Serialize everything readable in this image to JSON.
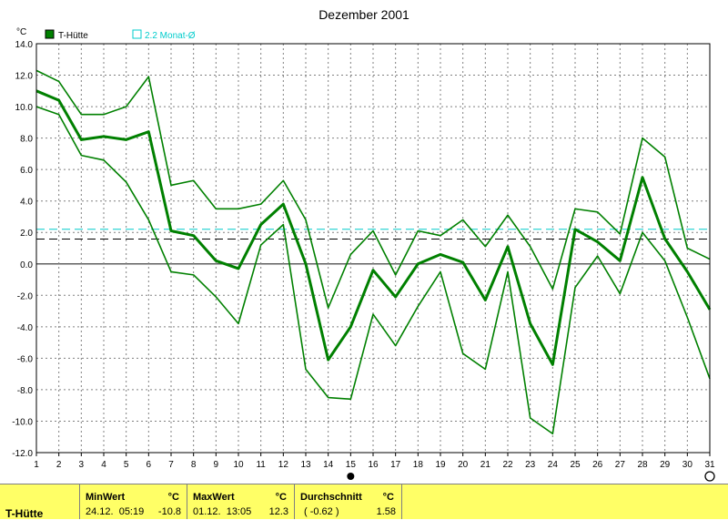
{
  "chart_data": {
    "type": "line",
    "title": "Dezember 2001",
    "ylabel": "°C",
    "ylim": [
      -12,
      14
    ],
    "yticks": [
      "14.0",
      "12.0",
      "10.0",
      "8.0",
      "6.0",
      "4.0",
      "2.0",
      "0.0",
      "-2.0",
      "-4.0",
      "-6.0",
      "-8.0",
      "-10.0",
      "-12.0"
    ],
    "x": [
      1,
      2,
      3,
      4,
      5,
      6,
      7,
      8,
      9,
      10,
      11,
      12,
      13,
      14,
      15,
      16,
      17,
      18,
      19,
      20,
      21,
      22,
      23,
      24,
      25,
      26,
      27,
      28,
      29,
      30,
      31
    ],
    "series": [
      {
        "name": "T-Hütte",
        "role": "mean",
        "color": "#008000",
        "values": [
          11.0,
          10.4,
          7.9,
          8.1,
          7.9,
          8.4,
          2.1,
          1.8,
          0.2,
          -0.3,
          2.5,
          3.8,
          0.0,
          -6.1,
          -4.0,
          -0.4,
          -2.1,
          0.0,
          0.6,
          0.1,
          -2.3,
          1.1,
          -3.8,
          -6.4,
          2.2,
          1.4,
          0.2,
          5.5,
          1.6,
          -0.5,
          -2.9
        ]
      },
      {
        "role": "max",
        "color": "#008000",
        "values": [
          12.3,
          11.6,
          9.5,
          9.5,
          10.0,
          11.9,
          5.0,
          5.3,
          3.5,
          3.5,
          3.8,
          5.3,
          2.8,
          -2.8,
          0.6,
          2.1,
          -0.7,
          2.1,
          1.8,
          2.8,
          1.1,
          3.1,
          1.1,
          -1.6,
          3.5,
          3.3,
          1.9,
          8.0,
          6.8,
          1.0,
          0.3
        ]
      },
      {
        "role": "min",
        "color": "#008000",
        "values": [
          10.0,
          9.5,
          6.9,
          6.6,
          5.2,
          2.8,
          -0.5,
          -0.7,
          -2.1,
          -3.8,
          1.2,
          2.5,
          -6.7,
          -8.5,
          -8.6,
          -3.2,
          -5.2,
          -2.7,
          -0.5,
          -5.7,
          -6.7,
          -0.5,
          -9.8,
          -10.8,
          -1.5,
          0.5,
          -1.9,
          2.0,
          0.2,
          -3.4,
          -7.3
        ]
      }
    ],
    "reference_lines": [
      {
        "name": "2.2 Monat-Ø",
        "value": 2.2,
        "color": "#00cccc",
        "style": "dashed"
      },
      {
        "value": 1.58,
        "color": "#000000",
        "style": "dashed"
      }
    ],
    "grid": true,
    "legend": "top-left",
    "markers": {
      "filled_day": 15,
      "open_day": 31
    }
  },
  "colors": {
    "panel": "#ffff66",
    "series": "#008000",
    "reference": "#00cccc"
  },
  "stats": {
    "label": "T-Hütte",
    "min": {
      "header": "MinWert",
      "unit": "°C",
      "datetime": "24.12.  05:19",
      "value": "-10.8"
    },
    "max": {
      "header": "MaxWert",
      "unit": "°C",
      "datetime": "01.12.  13:05",
      "value": "12.3"
    },
    "avg": {
      "header": "Durchschnitt",
      "unit": "°C",
      "note": "( -0.62 )",
      "value": "1.58"
    }
  }
}
